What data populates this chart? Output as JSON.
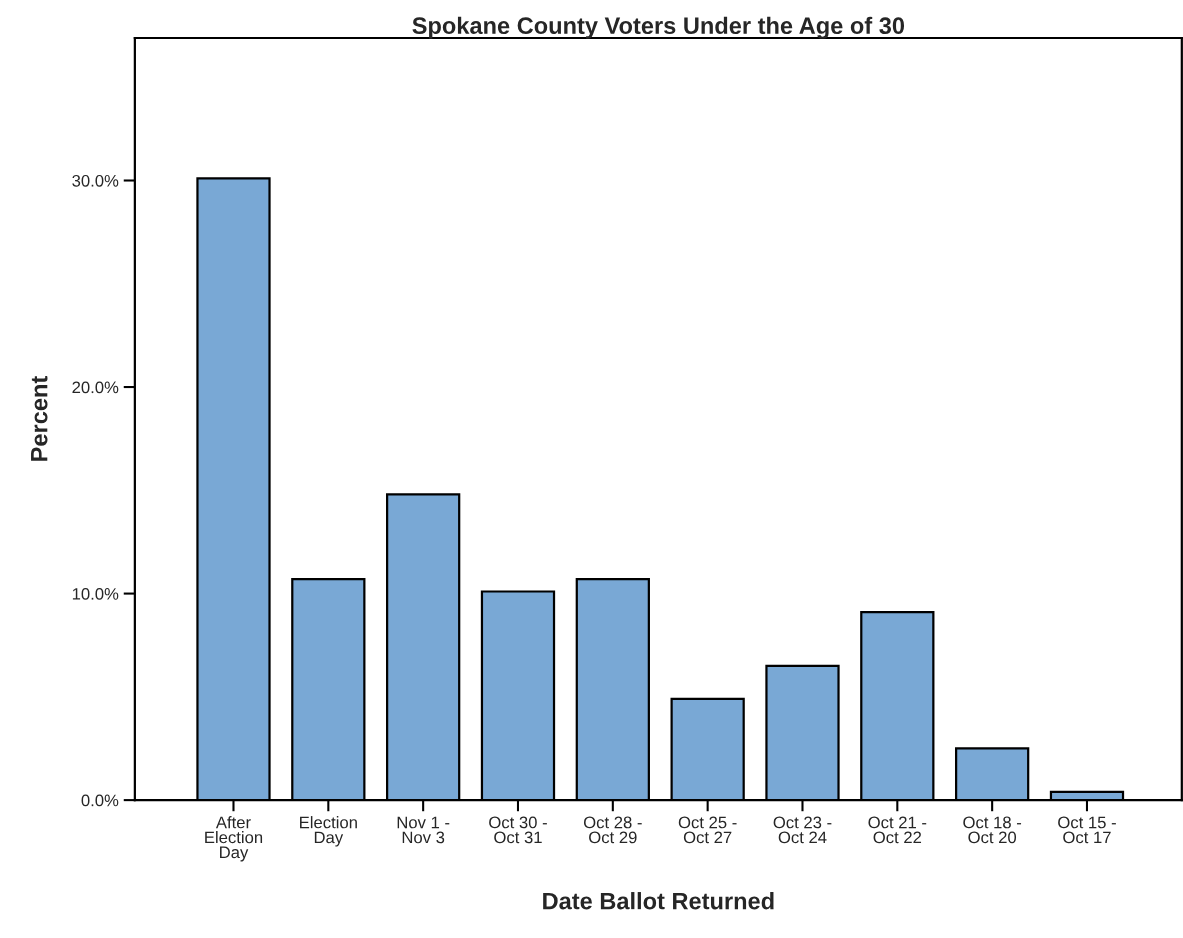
{
  "chart_data": {
    "type": "bar",
    "title": "Spokane County Voters Under the Age of 30",
    "xlabel": "Date Ballot Returned",
    "ylabel": "Percent",
    "categories": [
      "After\nElection\nDay",
      "Election\nDay",
      "Nov 1 -\nNov 3",
      "Oct 30 -\nOct 31",
      "Oct 28 -\nOct 29",
      "Oct 25 -\nOct 27",
      "Oct 23 -\nOct 24",
      "Oct 21 -\nOct 22",
      "Oct 18 -\nOct 20",
      "Oct 15 -\nOct 17"
    ],
    "values": [
      30.1,
      10.7,
      14.8,
      10.1,
      10.7,
      4.9,
      6.5,
      9.1,
      2.5,
      0.4
    ],
    "color": "#79a8d5",
    "ylim": [
      0,
      36.9
    ],
    "yticks": [
      {
        "value": 0,
        "label": "0.0%"
      },
      {
        "value": 10,
        "label": "10.0%"
      },
      {
        "value": 20,
        "label": "20.0%"
      },
      {
        "value": 30,
        "label": "30.0%"
      }
    ],
    "grid": false
  }
}
